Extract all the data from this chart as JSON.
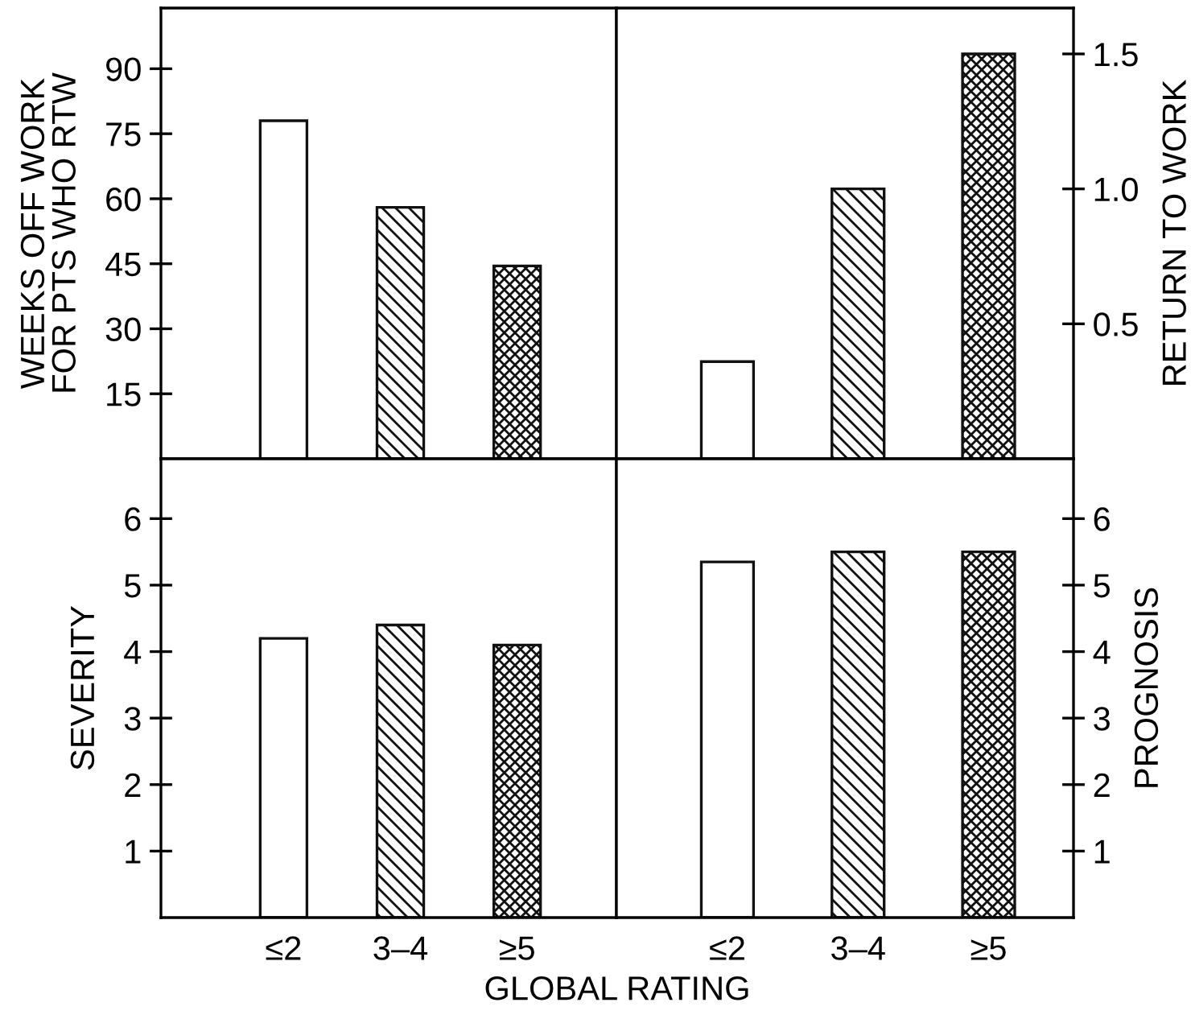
{
  "chart_data": [
    {
      "type": "bar",
      "ylabel": "WEEKS OFF WORK\nFOR PTS WHO RTW",
      "categories": [
        null,
        null,
        null
      ],
      "values": [
        78,
        58,
        44.5
      ],
      "colors": [
        "#ffffff",
        "#111111",
        "#111111"
      ],
      "ylim": [
        0,
        104
      ],
      "yticks": [
        15,
        30,
        45,
        60,
        75,
        90
      ],
      "tick_labels": "y",
      "grid": false
    },
    {
      "type": "bar",
      "ylabel": "RETURN TO WORK",
      "categories": [
        null,
        null,
        null
      ],
      "values": [
        0.36,
        1.0,
        1.5
      ],
      "colors": [
        "#ffffff",
        "#111111",
        "#111111"
      ],
      "ylim": [
        0,
        1.67
      ],
      "yticks": [
        0.5,
        {
          "value": 1.0,
          "label": "1.0"
        },
        1.5
      ],
      "tick_labels": "y",
      "grid": false
    },
    {
      "type": "bar",
      "ylabel": "SEVERITY",
      "xlabel": "GLOBAL RATING",
      "categories": [
        "≤2",
        "3–4",
        "≥5"
      ],
      "values": [
        4.2,
        4.4,
        4.1
      ],
      "colors": [
        "#ffffff",
        "#111111",
        "#111111"
      ],
      "ylim": [
        0,
        6.9
      ],
      "yticks": [
        1,
        2,
        3,
        4,
        5,
        6
      ],
      "grid": false
    },
    {
      "type": "bar",
      "ylabel": "PROGNOSIS",
      "categories": [
        "≤2",
        "3–4",
        "≥5"
      ],
      "values": [
        5.35,
        5.5,
        5.5
      ],
      "colors": [
        "#ffffff",
        "#111111",
        "#111111"
      ],
      "ylim": [
        0,
        6.9
      ],
      "yticks": [
        1,
        2,
        3,
        4,
        5,
        6
      ],
      "grid": false
    }
  ]
}
